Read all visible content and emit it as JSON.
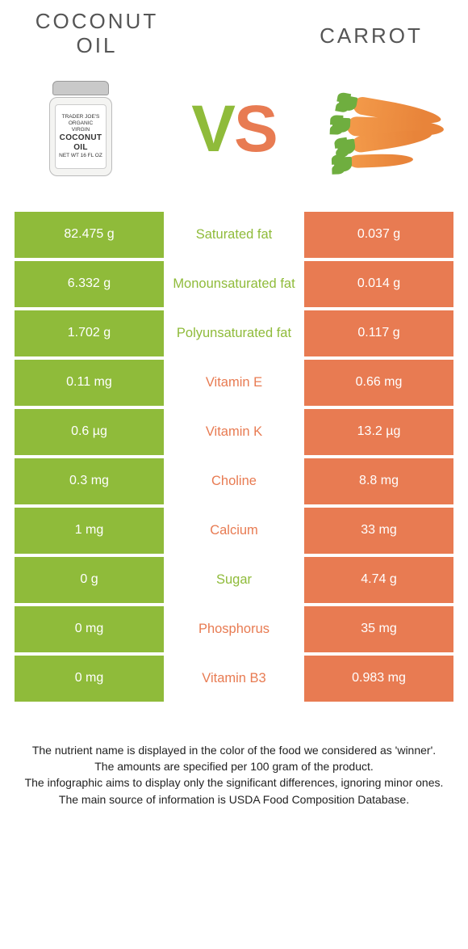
{
  "header": {
    "left_title": "COCONUT OIL",
    "right_title": "CARROT",
    "vs_v": "V",
    "vs_s": "S"
  },
  "colors": {
    "green": "#8fbb3a",
    "orange": "#e87b52",
    "text": "#333333",
    "bg": "#ffffff"
  },
  "jar_label": {
    "l1": "TRADER JOE'S",
    "l2": "ORGANIC VIRGIN",
    "l3": "COCONUT",
    "l4": "OIL",
    "l5": "NET WT 16 FL OZ"
  },
  "rows": [
    {
      "left": "82.475 g",
      "mid": "Saturated fat",
      "winner": "green",
      "right": "0.037 g"
    },
    {
      "left": "6.332 g",
      "mid": "Monounsaturated fat",
      "winner": "green",
      "right": "0.014 g"
    },
    {
      "left": "1.702 g",
      "mid": "Polyunsaturated fat",
      "winner": "green",
      "right": "0.117 g"
    },
    {
      "left": "0.11 mg",
      "mid": "Vitamin E",
      "winner": "orange",
      "right": "0.66 mg"
    },
    {
      "left": "0.6 µg",
      "mid": "Vitamin K",
      "winner": "orange",
      "right": "13.2 µg"
    },
    {
      "left": "0.3 mg",
      "mid": "Choline",
      "winner": "orange",
      "right": "8.8 mg"
    },
    {
      "left": "1 mg",
      "mid": "Calcium",
      "winner": "orange",
      "right": "33 mg"
    },
    {
      "left": "0 g",
      "mid": "Sugar",
      "winner": "green",
      "right": "4.74 g"
    },
    {
      "left": "0 mg",
      "mid": "Phosphorus",
      "winner": "orange",
      "right": "35 mg"
    },
    {
      "left": "0 mg",
      "mid": "Vitamin B3",
      "winner": "orange",
      "right": "0.983 mg"
    }
  ],
  "footer": {
    "l1": "The nutrient name is displayed in the color of the food we considered as 'winner'.",
    "l2": "The amounts are specified per 100 gram of the product.",
    "l3": "The infographic aims to display only the significant differences, ignoring minor ones.",
    "l4": "The main source of information is USDA Food Composition Database."
  }
}
